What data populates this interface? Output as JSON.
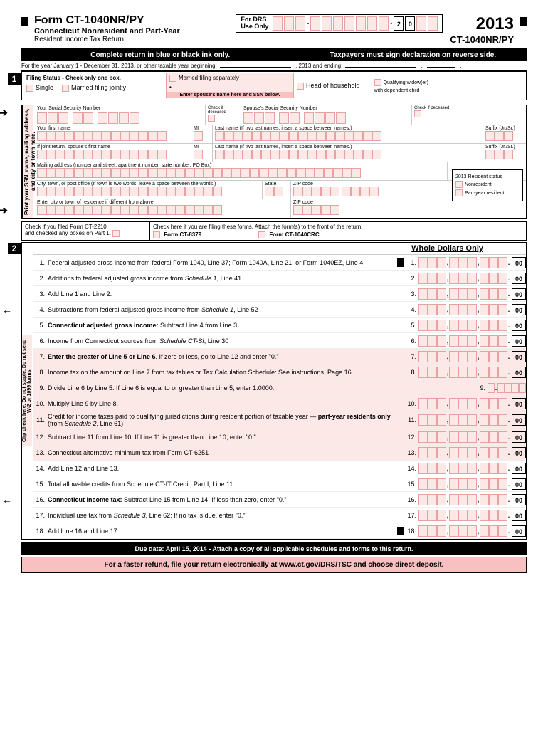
{
  "header": {
    "form_title": "Form CT-1040NR/PY",
    "subtitle1": "Connecticut Nonresident and Part-Year",
    "subtitle2": "Resident Income Tax Return",
    "drs_label1": "For DRS",
    "drs_label2": "Use Only",
    "drs_prefill": "2 0",
    "year": "2013",
    "form_code": "CT-1040NR/PY"
  },
  "bars": {
    "left": "Complete return in blue or black ink only.",
    "right": "Taxpayers must sign declaration on reverse side."
  },
  "year_line": {
    "prefix": "For the year January 1 - December 31, 2013, or other taxable year beginning:",
    "mid": ", 2013 and ending:"
  },
  "filing": {
    "title": "Filing Status - Check only one box.",
    "single": "Single",
    "mfj": "Married filing jointly",
    "mfs": "Married filing separately",
    "spouse_note": "Enter spouse's name here and SSN below.",
    "hoh": "Head of household",
    "qw1": "Qualifying widow(er)",
    "qw2": "with dependent child"
  },
  "vert_label": "Print your SSN, name, mailing address, and city or town here.",
  "name_labels": {
    "your_ssn": "Your Social Security Number",
    "spouse_ssn": "Spouse's Social Security Number",
    "check_deceased": "Check if deceased",
    "first_name": "Your first name",
    "mi": "MI",
    "last_name": "Last name (If two last names, insert a space between names.)",
    "suffix": "Suffix (Jr./Sr.)",
    "spouse_first": "If joint return, spouse's first name",
    "mailing": "Mailing address (number and street, apartment number, suite number, PO Box)",
    "city": "City, town, or post office (If town is two words, leave a space between the words.)",
    "state": "State",
    "zip": "ZIP code",
    "residence": "Enter city or town of residence if different from above.",
    "res_status_title": "2013 Resident status",
    "nonresident": "Nonresident",
    "partyear": "Part-year resident"
  },
  "check_forms": {
    "ct2210_1": "Check if you filed Form CT-2210",
    "ct2210_2": "and checked any boxes on Part 1.",
    "attach": "Check here if you are filing these forms. Attach the form(s) to the front of the return.",
    "f8379": "Form CT-8379",
    "fcrc": "Form CT-1040CRC"
  },
  "whole_dollars": "Whole Dollars Only",
  "lines_vert": "Clip check here. Do not staple. Do not send W-2 or 1099 forms.",
  "lines": [
    {
      "n": "1.",
      "t": "Federal adjusted gross income from federal Form 1040, Line 37; Form 1040A, Line 21; or Form 1040EZ, Line 4",
      "r": "1."
    },
    {
      "n": "2.",
      "t": "Additions to federal adjusted gross income from <i>Schedule 1</i>, Line 41",
      "r": "2."
    },
    {
      "n": "3.",
      "t": "Add Line 1 and Line 2.",
      "r": "3."
    },
    {
      "n": "4.",
      "t": "Subtractions from federal adjusted gross income from <i>Schedule 1</i>, Line 52",
      "r": "4.",
      "arrow": "←"
    },
    {
      "n": "5.",
      "t": "<b>Connecticut adjusted gross income:</b> Subtract Line 4 from Line 3.",
      "r": "5."
    },
    {
      "n": "6.",
      "t": "Income from Connecticut sources from <i>Schedule CT-SI</i>, Line 30",
      "r": "6."
    },
    {
      "n": "7.",
      "t": "<b>Enter the greater of Line 5 or Line 6</b>. If zero or less, go to Line 12 and enter \"0.\"",
      "r": "7.",
      "hl": true
    },
    {
      "n": "8.",
      "t": "Income tax on the amount on Line 7 from tax tables or Tax Calculation Schedule: See instructions, Page 16.",
      "r": "8.",
      "hl": true
    },
    {
      "n": "9.",
      "t": "Divide Line 6 by Line 5. If Line 6 is equal to or greater than Line 5, enter 1.0000.",
      "r": "9.",
      "hl": true,
      "dec": true
    },
    {
      "n": "10.",
      "t": "Multiply Line 9 by Line 8.",
      "r": "10.",
      "hl": true
    },
    {
      "n": "11.",
      "t": "Credit for income taxes paid to qualifying jurisdictions during resident portion of taxable year — <b>part-year residents only</b> (from <i>Schedule 2</i>, Line 61)",
      "r": "11.",
      "hl": true
    },
    {
      "n": "12.",
      "t": "Subtract Line 11 from Line 10. If Line 11 is greater than Line 10, enter \"0.\"",
      "r": "12.",
      "hl": true
    },
    {
      "n": "13.",
      "t": "Connecticut alternative minimum tax from Form CT-6251",
      "r": "13.",
      "hl": true
    },
    {
      "n": "14.",
      "t": "Add Line 12 and Line 13.",
      "r": "14."
    },
    {
      "n": "15.",
      "t": "Total allowable credits from Schedule CT-IT Credit, Part I, Line 11",
      "r": "15."
    },
    {
      "n": "16.",
      "t": "<b>Connecticut income tax:</b> Subtract Line 15 from Line 14. If less than zero, enter \"0.\"",
      "r": "16.",
      "arrow": "←"
    },
    {
      "n": "17.",
      "t": "Individual use tax from <i>Schedule 3</i>, Line 62: If no tax is due, enter \"0.\"",
      "r": "17."
    },
    {
      "n": "18.",
      "t": "Add Line 16 and Line 17.",
      "r": "18."
    }
  ],
  "footer": {
    "due": "Due date:  April 15, 2014  -  Attach a copy of all applicable schedules and forms to this return.",
    "efile": "For a faster refund, file your return electronically at www.ct.gov/DRS/TSC and choose direct deposit."
  }
}
